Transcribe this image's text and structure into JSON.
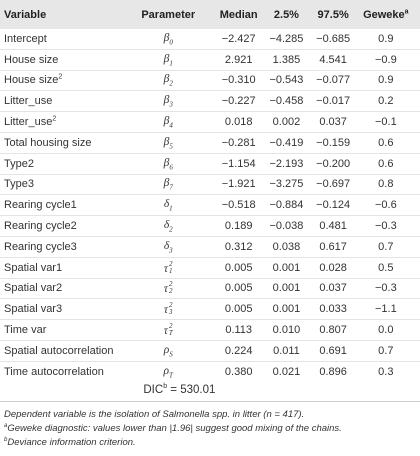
{
  "headers": {
    "variable": "Variable",
    "parameter": "Parameter",
    "median": "Median",
    "p2_5": "2.5%",
    "p97_5": "97.5%",
    "geweke": "Geweke",
    "geweke_sup": "a"
  },
  "rows": [
    {
      "variable": "Intercept",
      "sup": "",
      "sym": "β",
      "sub": "0",
      "supsym": "",
      "median": "−2.427",
      "p2_5": "−4.285",
      "p97_5": "−0.685",
      "geweke": "0.9"
    },
    {
      "variable": "House size",
      "sup": "",
      "sym": "β",
      "sub": "1",
      "supsym": "",
      "median": "2.921",
      "p2_5": "1.385",
      "p97_5": "4.541",
      "geweke": "−0.9"
    },
    {
      "variable": "House size",
      "sup": "2",
      "sym": "β",
      "sub": "2",
      "supsym": "",
      "median": "−0.310",
      "p2_5": "−0.543",
      "p97_5": "−0.077",
      "geweke": "0.9"
    },
    {
      "variable": "Litter_use",
      "sup": "",
      "sym": "β",
      "sub": "3",
      "supsym": "",
      "median": "−0.227",
      "p2_5": "−0.458",
      "p97_5": "−0.017",
      "geweke": "0.2"
    },
    {
      "variable": "Litter_use",
      "sup": "2",
      "sym": "β",
      "sub": "4",
      "supsym": "",
      "median": "0.018",
      "p2_5": "0.002",
      "p97_5": "0.037",
      "geweke": "−0.1"
    },
    {
      "variable": "Total housing size",
      "sup": "",
      "sym": "β",
      "sub": "5",
      "supsym": "",
      "median": "−0.281",
      "p2_5": "−0.419",
      "p97_5": "−0.159",
      "geweke": "0.6"
    },
    {
      "variable": "Type2",
      "sup": "",
      "sym": "β",
      "sub": "6",
      "supsym": "",
      "median": "−1.154",
      "p2_5": "−2.193",
      "p97_5": "−0.200",
      "geweke": "0.6"
    },
    {
      "variable": "Type3",
      "sup": "",
      "sym": "β",
      "sub": "7",
      "supsym": "",
      "median": "−1.921",
      "p2_5": "−3.275",
      "p97_5": "−0.697",
      "geweke": "0.8"
    },
    {
      "variable": "Rearing cycle1",
      "sup": "",
      "sym": "δ",
      "sub": "1",
      "supsym": "",
      "median": "−0.518",
      "p2_5": "−0.884",
      "p97_5": "−0.124",
      "geweke": "−0.6"
    },
    {
      "variable": "Rearing cycle2",
      "sup": "",
      "sym": "δ",
      "sub": "2",
      "supsym": "",
      "median": "0.189",
      "p2_5": "−0.038",
      "p97_5": "0.481",
      "geweke": "−0.3"
    },
    {
      "variable": "Rearing cycle3",
      "sup": "",
      "sym": "δ",
      "sub": "3",
      "supsym": "",
      "median": "0.312",
      "p2_5": "0.038",
      "p97_5": "0.617",
      "geweke": "0.7"
    },
    {
      "variable": "Spatial var1",
      "sup": "",
      "sym": "τ",
      "sub": "1",
      "supsym": "2",
      "median": "0.005",
      "p2_5": "0.001",
      "p97_5": "0.028",
      "geweke": "0.5"
    },
    {
      "variable": "Spatial var2",
      "sup": "",
      "sym": "τ",
      "sub": "2",
      "supsym": "2",
      "median": "0.005",
      "p2_5": "0.001",
      "p97_5": "0.037",
      "geweke": "−0.3"
    },
    {
      "variable": "Spatial var3",
      "sup": "",
      "sym": "τ",
      "sub": "3",
      "supsym": "2",
      "median": "0.005",
      "p2_5": "0.001",
      "p97_5": "0.033",
      "geweke": "−1.1"
    },
    {
      "variable": "Time var",
      "sup": "",
      "sym": "τ",
      "sub": "T",
      "supsym": "2",
      "median": "0.113",
      "p2_5": "0.010",
      "p97_5": "0.807",
      "geweke": "0.0"
    },
    {
      "variable": "Spatial autocorrelation",
      "sup": "",
      "sym": "ρ",
      "sub": "S",
      "supsym": "",
      "median": "0.224",
      "p2_5": "0.011",
      "p97_5": "0.691",
      "geweke": "0.7"
    },
    {
      "variable": "Time autocorrelation",
      "sup": "",
      "sym": "ρ",
      "sub": "T",
      "supsym": "",
      "median": "0.380",
      "p2_5": "0.021",
      "p97_5": "0.896",
      "geweke": "0.3"
    }
  ],
  "dic": {
    "label": "DIC",
    "sup": "b",
    "value": "= 530.01"
  },
  "footnotes": {
    "main": "Dependent variable is the isolation of Salmonella spp. in litter (n = 417).",
    "a_mark": "a",
    "a_text": "Geweke diagnostic: values lower than |1.96| suggest good mixing of the chains.",
    "b_mark": "b",
    "b_text": "Deviance information criterion."
  },
  "colors": {
    "header_bg": "#e7e7e7",
    "row_divider": "#e4e4e4",
    "text": "#333333"
  }
}
